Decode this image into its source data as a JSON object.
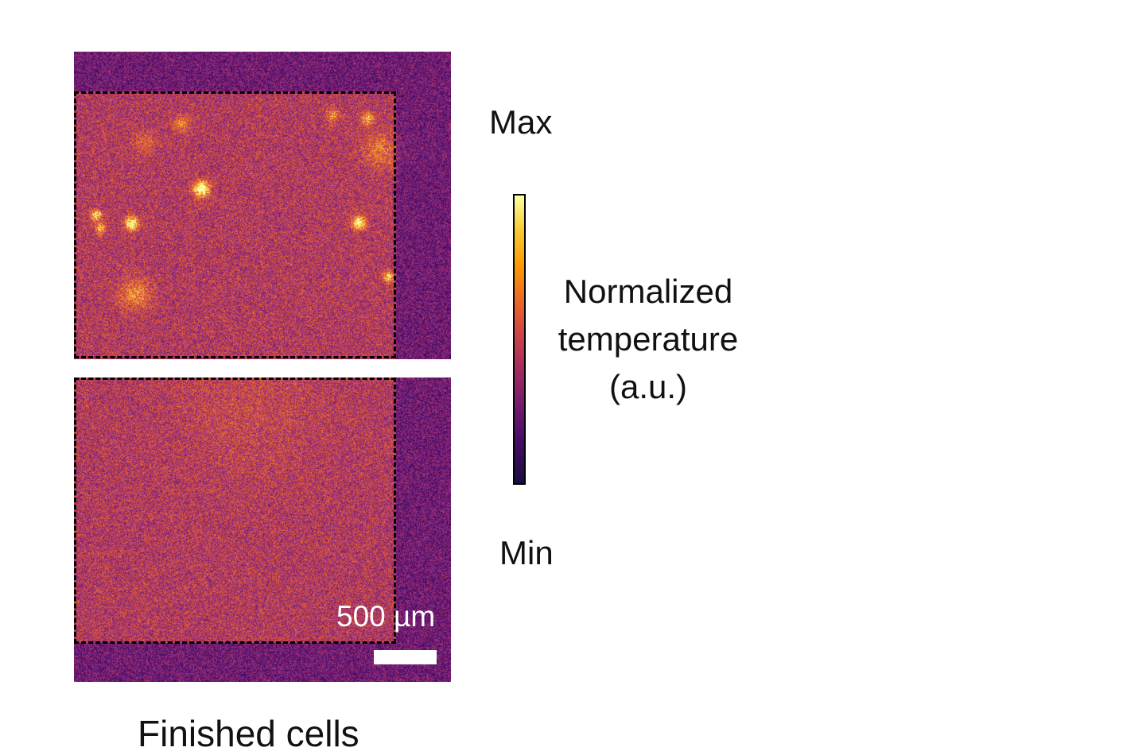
{
  "panels": [
    {
      "id": "top",
      "hotspots": true
    },
    {
      "id": "bottom",
      "hotspots": false
    }
  ],
  "scale_bar": {
    "label": "500 µm"
  },
  "colorbar": {
    "max_label": "Max",
    "min_label": "Min",
    "title_lines": [
      "Normalized",
      "temperature",
      "(a.u.)"
    ],
    "colormap": "inferno"
  },
  "caption": "Finished cells"
}
